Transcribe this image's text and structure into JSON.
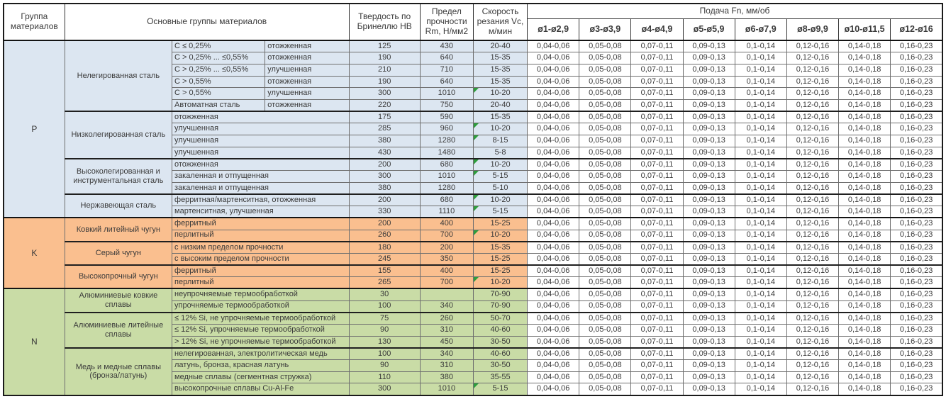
{
  "header": {
    "col_group": "Группа материалов",
    "col_materials": "Основные группы материалов",
    "col_hardness": "Твердость по Бринеллю HB",
    "col_strength": "Предел прочности Rm, Н/мм2",
    "col_speed": "Скорость резания Vc, м/мин",
    "feed_title": "Подача Fn, мм/об",
    "diameters": [
      "ø1-ø2,9",
      "ø3-ø3,9",
      "ø4-ø4,9",
      "ø5-ø5,9",
      "ø6-ø7,9",
      "ø8-ø9,9",
      "ø10-ø11,5",
      "ø12-ø16"
    ]
  },
  "feed_values": [
    "0,04-0,06",
    "0,05-0,08",
    "0,07-0,11",
    "0,09-0,13",
    "0,1-0,14",
    "0,12-0,16",
    "0,14-0,18",
    "0,16-0,23"
  ],
  "note_marker_color": "#2e9e3d",
  "groups": [
    {
      "letter": "P",
      "color": "#dce6f1",
      "subgroups": [
        {
          "name": "Нелегированная сталь",
          "rows": [
            {
              "desc1": "C ≤ 0,25%",
              "desc2": "отожженная",
              "hb": "125",
              "rm": "430",
              "vc": "20-40",
              "note": false
            },
            {
              "desc1": "C > 0,25% ... ≤0,55%",
              "desc2": "отожженная",
              "hb": "190",
              "rm": "640",
              "vc": "15-35",
              "note": false
            },
            {
              "desc1": "C > 0,25% ... ≤0,55%",
              "desc2": "улучшенная",
              "hb": "210",
              "rm": "710",
              "vc": "15-35",
              "note": false
            },
            {
              "desc1": "C > 0,55%",
              "desc2": "отожженная",
              "hb": "190",
              "rm": "640",
              "vc": "15-35",
              "note": false
            },
            {
              "desc1": "C > 0,55%",
              "desc2": "улучшенная",
              "hb": "300",
              "rm": "1010",
              "vc": "10-20",
              "note": true
            },
            {
              "desc1": "Автоматная сталь",
              "desc2": "отожженная",
              "hb": "220",
              "rm": "750",
              "vc": "20-40",
              "note": false
            }
          ]
        },
        {
          "name": "Низколегированная сталь",
          "rows": [
            {
              "desc": "отожженная",
              "hb": "175",
              "rm": "590",
              "vc": "15-35",
              "note": false
            },
            {
              "desc": "улучшенная",
              "hb": "285",
              "rm": "960",
              "vc": "10-20",
              "note": true
            },
            {
              "desc": "улучшенная",
              "hb": "380",
              "rm": "1280",
              "vc": "8-15",
              "note": true
            },
            {
              "desc": "улучшенная",
              "hb": "430",
              "rm": "1480",
              "vc": "5-8",
              "note": false
            }
          ]
        },
        {
          "name": "Высоколегированная и инструментальная сталь",
          "rows": [
            {
              "desc": "отожженная",
              "hb": "200",
              "rm": "680",
              "vc": "10-20",
              "note": true
            },
            {
              "desc": "закаленная и отпущенная",
              "hb": "300",
              "rm": "1010",
              "vc": "5-15",
              "note": true
            },
            {
              "desc": "закаленная и отпущенная",
              "hb": "380",
              "rm": "1280",
              "vc": "5-10",
              "note": false
            }
          ]
        },
        {
          "name": "Нержавеющая сталь",
          "rows": [
            {
              "desc": "ферритная/мартенситная, отожженная",
              "hb": "200",
              "rm": "680",
              "vc": "10-20",
              "note": true
            },
            {
              "desc": "мартенситная, улучшенная",
              "hb": "330",
              "rm": "1110",
              "vc": "5-15",
              "note": true
            }
          ]
        }
      ]
    },
    {
      "letter": "K",
      "color": "#fabf8f",
      "subgroups": [
        {
          "name": "Ковкий литейный чугун",
          "rows": [
            {
              "desc": "ферритный",
              "hb": "200",
              "rm": "400",
              "vc": "15-25",
              "note": false
            },
            {
              "desc": "перлитный",
              "hb": "260",
              "rm": "700",
              "vc": "10-20",
              "note": true
            }
          ]
        },
        {
          "name": "Серый чугун",
          "rows": [
            {
              "desc": "с низким пределом прочности",
              "hb": "180",
              "rm": "200",
              "vc": "15-35",
              "note": false
            },
            {
              "desc": "с высоким пределом прочности",
              "hb": "245",
              "rm": "350",
              "vc": "15-25",
              "note": false
            }
          ]
        },
        {
          "name": "Высокопрочный чугун",
          "rows": [
            {
              "desc": "ферритный",
              "hb": "155",
              "rm": "400",
              "vc": "15-25",
              "note": false
            },
            {
              "desc": "перлитный",
              "hb": "265",
              "rm": "700",
              "vc": "10-20",
              "note": true
            }
          ]
        }
      ]
    },
    {
      "letter": "N",
      "color": "#c9dca6",
      "subgroups": [
        {
          "name": "Алюминиевые ковкие сплавы",
          "rows": [
            {
              "desc": "неупрочняемые термообработкой",
              "hb": "30",
              "rm": "",
              "vc": "70-90",
              "note": false
            },
            {
              "desc": "упрочняемые термообработкой",
              "hb": "100",
              "rm": "340",
              "vc": "70-90",
              "note": false
            }
          ]
        },
        {
          "name": "Алюминиевые литейные сплавы",
          "rows": [
            {
              "desc": "≤ 12% Si, не упрочняемые термообработкой",
              "hb": "75",
              "rm": "260",
              "vc": "50-70",
              "note": false
            },
            {
              "desc": "≤ 12% Si, упрочняемые термообработкой",
              "hb": "90",
              "rm": "310",
              "vc": "40-60",
              "note": false
            },
            {
              "desc": "> 12% Si, не упрочняемые термообработкой",
              "hb": "130",
              "rm": "450",
              "vc": "30-50",
              "note": false
            }
          ]
        },
        {
          "name": "Медь и медные сплавы (бронза/латунь)",
          "rows": [
            {
              "desc": "нелегированная, электролитическая медь",
              "hb": "100",
              "rm": "340",
              "vc": "40-60",
              "note": false
            },
            {
              "desc": "латунь, бронза, красная латунь",
              "hb": "90",
              "rm": "310",
              "vc": "30-50",
              "note": false
            },
            {
              "desc": "медные сплавы (сегментная стружка)",
              "hb": "110",
              "rm": "380",
              "vc": "35-55",
              "note": false
            },
            {
              "desc": "высокопрочные сплавы Cu-Al-Fe",
              "hb": "300",
              "rm": "1010",
              "vc": "5-15",
              "note": true
            }
          ]
        }
      ]
    }
  ]
}
